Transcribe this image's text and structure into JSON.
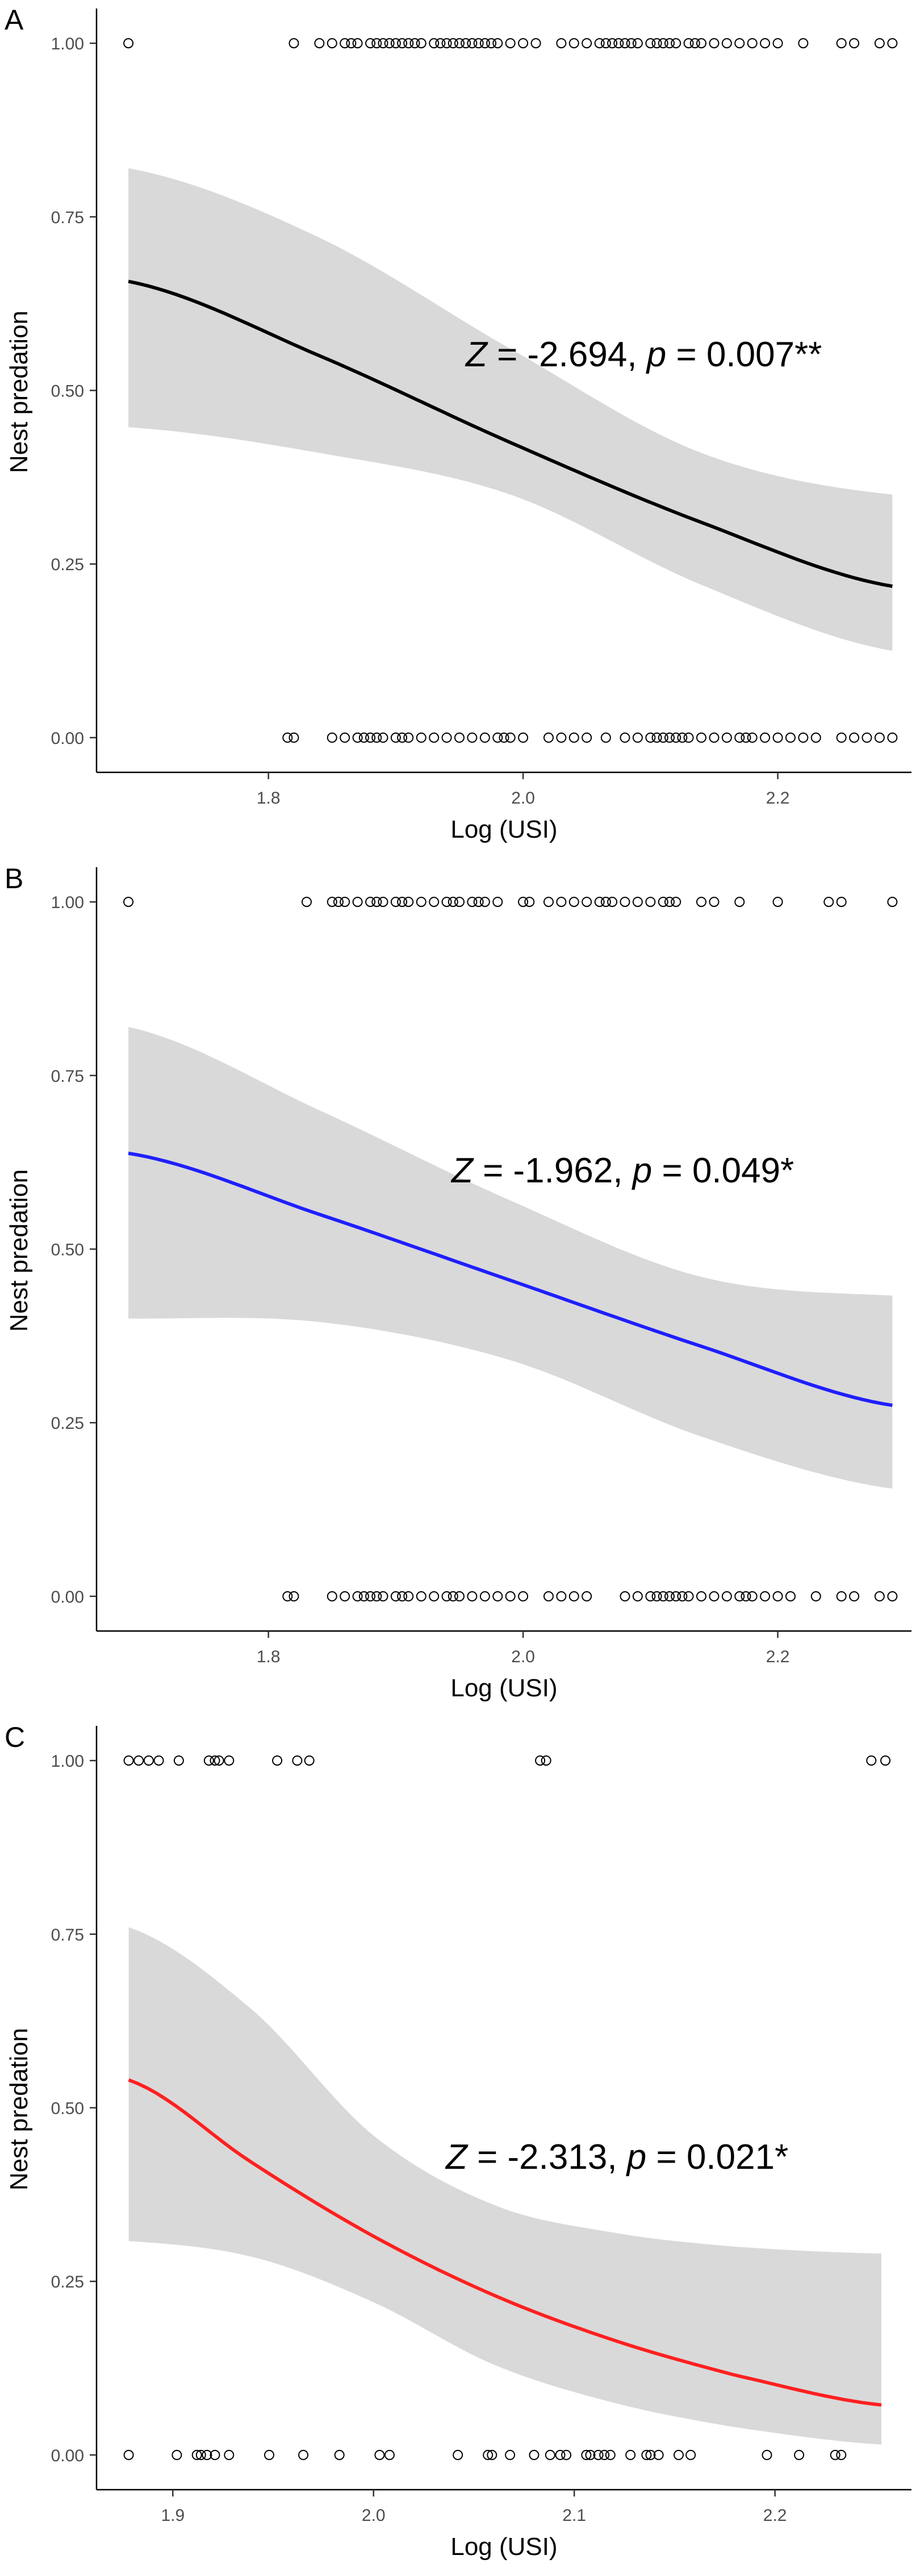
{
  "chart_data": [
    {
      "panel": "A",
      "type": "line",
      "xlabel": "Log (USI)",
      "ylabel": "Nest predation",
      "xlim": [
        1.665,
        2.305
      ],
      "ylim": [
        -0.05,
        1.05
      ],
      "xticks": [
        {
          "value": 1.8,
          "label": "1.8"
        },
        {
          "value": 2.0,
          "label": "2.0"
        },
        {
          "value": 2.2,
          "label": "2.2"
        }
      ],
      "yticks": [
        {
          "value": 0.0,
          "label": "0.00"
        },
        {
          "value": 0.25,
          "label": "0.25"
        },
        {
          "value": 0.5,
          "label": "0.50"
        },
        {
          "value": 0.75,
          "label": "0.75"
        },
        {
          "value": 1.0,
          "label": "1.00"
        }
      ],
      "annotation": {
        "z_symbol": "Z",
        "z_text": " = -2.694, ",
        "p_symbol": "p",
        "p_text": " = 0.007**"
      },
      "line_color": "#000000",
      "ci_color": "#d9d9d9",
      "fit": {
        "x": [
          1.69,
          1.84,
          1.99,
          2.14,
          2.29
        ],
        "y": [
          0.657,
          0.55,
          0.425,
          0.31,
          0.218
        ]
      },
      "ci_upper": [
        0.82,
        0.72,
        0.56,
        0.41,
        0.35
      ],
      "ci_lower": [
        0.447,
        0.41,
        0.35,
        0.22,
        0.125
      ],
      "points_1": [
        1.69,
        1.82,
        1.84,
        1.85,
        1.86,
        1.865,
        1.87,
        1.88,
        1.885,
        1.89,
        1.895,
        1.9,
        1.905,
        1.91,
        1.915,
        1.92,
        1.93,
        1.935,
        1.94,
        1.945,
        1.95,
        1.955,
        1.96,
        1.965,
        1.97,
        1.975,
        1.98,
        1.99,
        2.0,
        2.01,
        2.03,
        2.04,
        2.05,
        2.06,
        2.065,
        2.07,
        2.075,
        2.08,
        2.085,
        2.09,
        2.1,
        2.105,
        2.11,
        2.115,
        2.12,
        2.13,
        2.135,
        2.14,
        2.15,
        2.16,
        2.17,
        2.18,
        2.19,
        2.2,
        2.22,
        2.25,
        2.26,
        2.28,
        2.29
      ],
      "points_0": [
        1.815,
        1.82,
        1.85,
        1.86,
        1.87,
        1.875,
        1.88,
        1.885,
        1.89,
        1.9,
        1.905,
        1.91,
        1.92,
        1.93,
        1.94,
        1.95,
        1.96,
        1.97,
        1.98,
        1.985,
        1.99,
        2.0,
        2.02,
        2.03,
        2.04,
        2.05,
        2.065,
        2.08,
        2.09,
        2.1,
        2.105,
        2.11,
        2.115,
        2.12,
        2.125,
        2.13,
        2.14,
        2.15,
        2.16,
        2.17,
        2.175,
        2.18,
        2.19,
        2.2,
        2.21,
        2.22,
        2.23,
        2.25,
        2.26,
        2.27,
        2.28,
        2.29
      ]
    },
    {
      "panel": "B",
      "type": "line",
      "xlabel": "Log (USI)",
      "ylabel": "Nest predation",
      "xlim": [
        1.665,
        2.305
      ],
      "ylim": [
        -0.05,
        1.05
      ],
      "xticks": [
        {
          "value": 1.8,
          "label": "1.8"
        },
        {
          "value": 2.0,
          "label": "2.0"
        },
        {
          "value": 2.2,
          "label": "2.2"
        }
      ],
      "yticks": [
        {
          "value": 0.0,
          "label": "0.00"
        },
        {
          "value": 0.25,
          "label": "0.25"
        },
        {
          "value": 0.5,
          "label": "0.50"
        },
        {
          "value": 0.75,
          "label": "0.75"
        },
        {
          "value": 1.0,
          "label": "1.00"
        }
      ],
      "annotation": {
        "z_symbol": "Z",
        "z_text": " = -1.962, ",
        "p_symbol": "p",
        "p_text": " = 0.049*"
      },
      "line_color": "#1f1fff",
      "ci_color": "#d9d9d9",
      "fit": {
        "x": [
          1.69,
          1.84,
          1.99,
          2.14,
          2.29
        ],
        "y": [
          0.638,
          0.55,
          0.455,
          0.36,
          0.275
        ]
      },
      "ci_upper": [
        0.82,
        0.7,
        0.57,
        0.46,
        0.433
      ],
      "ci_lower": [
        0.4,
        0.395,
        0.34,
        0.23,
        0.155
      ],
      "points_1": [
        1.69,
        1.83,
        1.85,
        1.855,
        1.86,
        1.87,
        1.88,
        1.885,
        1.89,
        1.9,
        1.905,
        1.91,
        1.92,
        1.93,
        1.94,
        1.945,
        1.95,
        1.96,
        1.965,
        1.97,
        1.98,
        2.0,
        2.005,
        2.02,
        2.03,
        2.04,
        2.05,
        2.06,
        2.065,
        2.07,
        2.08,
        2.09,
        2.1,
        2.11,
        2.115,
        2.12,
        2.14,
        2.15,
        2.17,
        2.2,
        2.24,
        2.25,
        2.29
      ],
      "points_0": [
        1.815,
        1.82,
        1.85,
        1.86,
        1.87,
        1.875,
        1.88,
        1.885,
        1.89,
        1.9,
        1.905,
        1.91,
        1.92,
        1.93,
        1.94,
        1.945,
        1.95,
        1.96,
        1.97,
        1.98,
        1.99,
        2.0,
        2.02,
        2.03,
        2.04,
        2.05,
        2.08,
        2.09,
        2.1,
        2.105,
        2.11,
        2.115,
        2.12,
        2.125,
        2.13,
        2.14,
        2.15,
        2.16,
        2.17,
        2.175,
        2.18,
        2.19,
        2.2,
        2.21,
        2.23,
        2.25,
        2.26,
        2.28,
        2.29
      ]
    },
    {
      "panel": "C",
      "type": "line",
      "xlabel": "Log (USI)",
      "ylabel": "Nest predation",
      "xlim": [
        1.862,
        2.268
      ],
      "ylim": [
        -0.05,
        1.05
      ],
      "xticks": [
        {
          "value": 1.9,
          "label": "1.9"
        },
        {
          "value": 2.0,
          "label": "2.0"
        },
        {
          "value": 2.1,
          "label": "2.1"
        },
        {
          "value": 2.2,
          "label": "2.2"
        }
      ],
      "yticks": [
        {
          "value": 0.0,
          "label": "0.00"
        },
        {
          "value": 0.25,
          "label": "0.25"
        },
        {
          "value": 0.5,
          "label": "0.50"
        },
        {
          "value": 0.75,
          "label": "0.75"
        },
        {
          "value": 1.0,
          "label": "1.00"
        }
      ],
      "annotation": {
        "z_symbol": "Z",
        "z_text": " = -2.313, ",
        "p_symbol": "p",
        "p_text": " = 0.021*"
      },
      "line_color": "#ff2020",
      "ci_color": "#d9d9d9",
      "fit": {
        "x": [
          1.878,
          1.94,
          2.0,
          2.06,
          2.12,
          2.18,
          2.253
        ],
        "y": [
          0.54,
          0.42,
          0.315,
          0.23,
          0.165,
          0.115,
          0.072
        ]
      },
      "ci_upper": [
        0.76,
        0.64,
        0.46,
        0.36,
        0.32,
        0.3,
        0.29
      ],
      "ci_lower": [
        0.308,
        0.285,
        0.22,
        0.13,
        0.075,
        0.04,
        0.015
      ],
      "points_1": [
        1.878,
        1.883,
        1.888,
        1.893,
        1.903,
        1.918,
        1.921,
        1.923,
        1.928,
        1.952,
        1.962,
        1.968,
        2.083,
        2.086,
        2.248,
        2.255
      ],
      "points_0": [
        1.878,
        1.902,
        1.912,
        1.914,
        1.917,
        1.921,
        1.928,
        1.948,
        1.965,
        1.983,
        2.003,
        2.008,
        2.042,
        2.057,
        2.059,
        2.068,
        2.08,
        2.088,
        2.093,
        2.096,
        2.106,
        2.108,
        2.112,
        2.115,
        2.118,
        2.128,
        2.136,
        2.138,
        2.142,
        2.152,
        2.158,
        2.196,
        2.212,
        2.23,
        2.233
      ]
    }
  ]
}
